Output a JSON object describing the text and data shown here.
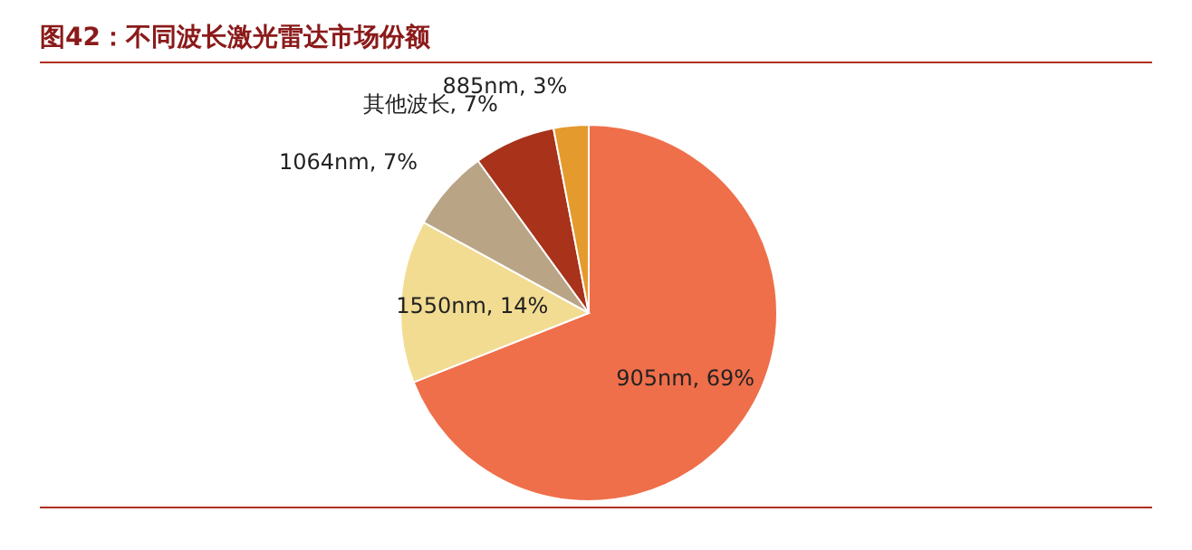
{
  "chart_data": {
    "type": "pie",
    "title": "图42：不同波长激光雷达市场份额",
    "categories": [
      "905nm",
      "1550nm",
      "1064nm",
      "其他波长",
      "885nm"
    ],
    "values": [
      69,
      14,
      7,
      7,
      3
    ],
    "value_labels": [
      "69%",
      "14%",
      "7%",
      "7%",
      "3%"
    ],
    "colors": [
      "#ef6f4b",
      "#f2dc92",
      "#b9a486",
      "#a8321a",
      "#e49a2c"
    ],
    "legend": false
  }
}
